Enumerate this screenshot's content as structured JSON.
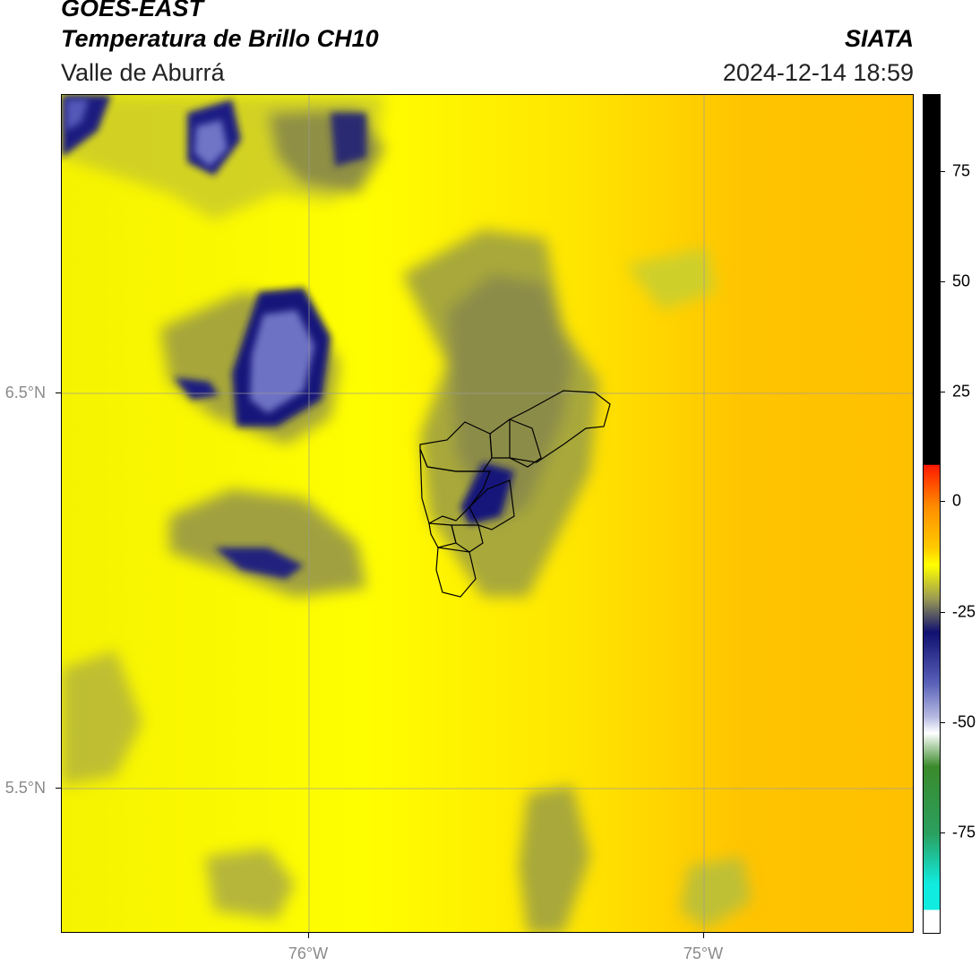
{
  "header": {
    "satellite": "GOES-EAST",
    "product": "Temperatura de Brillo CH10",
    "organization": "SIATA",
    "region": "Valle de Aburrá",
    "datetime": "2024-12-14 18:59"
  },
  "map": {
    "lat_labels": [
      "6.5°N",
      "5.5°N"
    ],
    "lon_labels": [
      "76°W",
      "75°W"
    ],
    "background_color": "#ffee00"
  },
  "colorbar": {
    "tick_labels": [
      "75",
      "50",
      "25",
      "0",
      "-25",
      "-50",
      "-75"
    ],
    "colors": {
      "top_black": "#000000",
      "red": "#ff1a00",
      "orange": "#ff8c00",
      "yellow": "#ffff00",
      "olive": "#9a9a55",
      "navy": "#101070",
      "light_blue": "#b4b8e0",
      "white": "#ffffff",
      "green": "#3a8a2a",
      "cyan": "#10ece0"
    }
  }
}
